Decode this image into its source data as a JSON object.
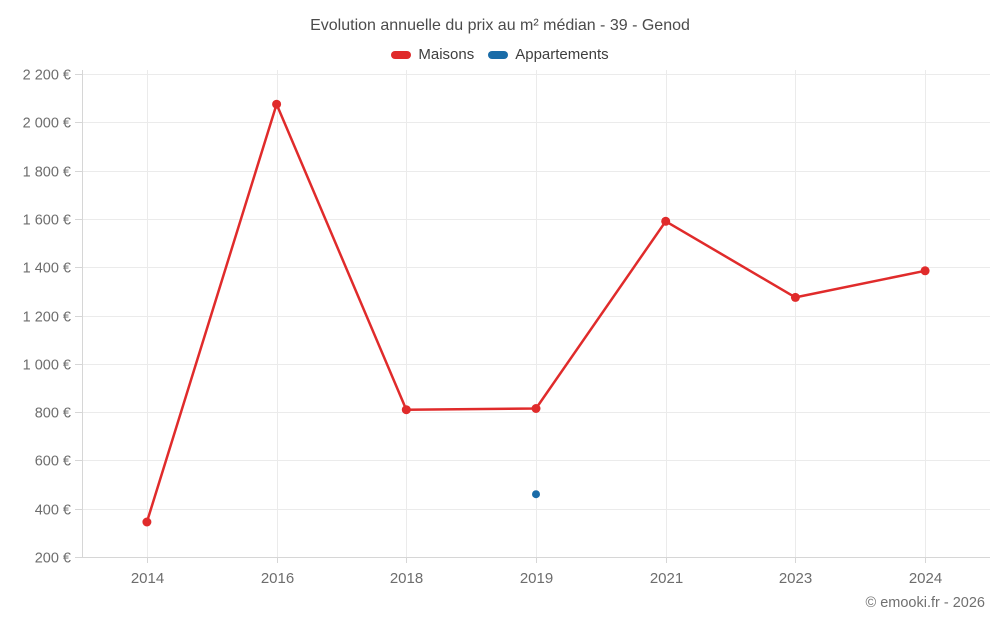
{
  "title": "Evolution annuelle du prix au m² médian - 39 - Genod",
  "legend": [
    {
      "label": "Maisons",
      "color": "#e02b2b"
    },
    {
      "label": "Appartements",
      "color": "#1a6ca8"
    }
  ],
  "watermark": "© emooki.fr - 2026",
  "icons": {
    "maisons_swatch": "red-line-swatch-icon",
    "appartements_swatch": "blue-line-swatch-icon"
  },
  "chart_data": {
    "type": "line",
    "title": "Evolution annuelle du prix au m² médian - 39 - Genod",
    "categories": [
      "2014",
      "2016",
      "2018",
      "2019",
      "2021",
      "2023",
      "2024"
    ],
    "series": [
      {
        "name": "Maisons",
        "color": "#e02b2b",
        "values": [
          345,
          2075,
          810,
          815,
          1590,
          1275,
          1385
        ],
        "draw_line": true,
        "marker_radius": 4.5
      },
      {
        "name": "Appartements",
        "color": "#1a6ca8",
        "values": [
          null,
          null,
          null,
          460,
          null,
          null,
          null
        ],
        "draw_line": true,
        "marker_radius": 4
      }
    ],
    "xlabel": "",
    "ylabel": "",
    "ylim": [
      200,
      2200
    ],
    "ytick_step": 200,
    "ytick_labels": [
      "200 €",
      "400 €",
      "600 €",
      "800 €",
      "1 000 €",
      "1 200 €",
      "1 400 €",
      "1 600 €",
      "1 800 €",
      "2 000 €",
      "2 200 €"
    ],
    "grid": true,
    "legend_position": "top",
    "styles": {
      "grid_color": "#ebebeb",
      "axis_color": "#d6d6d6",
      "tick_color": "#d6d6d6",
      "tick_label_color": "#6d6d6d"
    }
  }
}
